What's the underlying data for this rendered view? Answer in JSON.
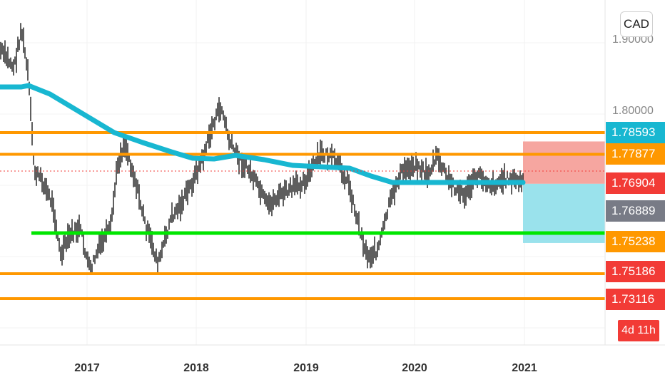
{
  "chart_data": {
    "type": "candlestick",
    "currency": "CAD",
    "x_ticks": [
      "2017",
      "2018",
      "2019",
      "2020",
      "2021"
    ],
    "price_labels": [
      {
        "value": "1.78593",
        "color": "#18b7d1"
      },
      {
        "value": "1.77877",
        "color": "#ff9800"
      },
      {
        "value": "1.76904",
        "color": "#f23b36"
      },
      {
        "value": "1.76889",
        "color": "#787b86"
      },
      {
        "value": "1.75238",
        "color": "#ff9800"
      },
      {
        "value": "1.75186",
        "color": "#f23b36"
      },
      {
        "value": "1.73116",
        "color": "#f23b36"
      }
    ],
    "countdown": "4d 11h",
    "horizontal_levels": [
      {
        "price": 1.78593,
        "color": "#ff9800",
        "role": "resistance"
      },
      {
        "price": 1.77877,
        "color": "#ff9800",
        "role": "resistance"
      },
      {
        "price": 1.75238,
        "color": "#00e600",
        "role": "support"
      },
      {
        "price": 1.75186,
        "color": "#ff9800",
        "role": "support"
      },
      {
        "price": 1.73116,
        "color": "#ff9800",
        "role": "support"
      }
    ],
    "moving_average_color": "#18b7d1",
    "last_price": 1.76904,
    "position_box": {
      "entry": 1.76904,
      "stop": 1.77877,
      "target": 1.75186,
      "side": "short"
    }
  }
}
